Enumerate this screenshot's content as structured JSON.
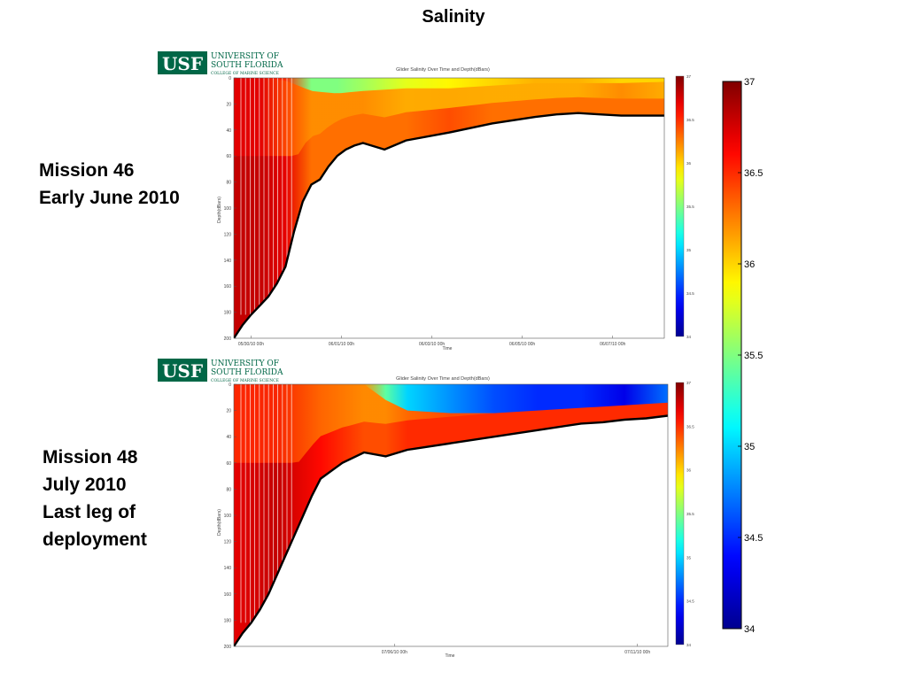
{
  "title": "Salinity",
  "logo": {
    "abbr": "USF",
    "line1": "UNIVERSITY OF",
    "line2": "SOUTH FLORIDA",
    "line3": "COLLEGE OF MARINE SCIENCE"
  },
  "missions": [
    {
      "lines": [
        "Mission 46",
        "Early June 2010"
      ]
    },
    {
      "lines": [
        "Mission 48",
        "July 2010",
        "Last leg of",
        "deployment"
      ]
    }
  ],
  "colorbar_ticks": [
    "37",
    "36.5",
    "36",
    "35.5",
    "35",
    "34.5",
    "34"
  ],
  "colors": {
    "colormap": [
      "#00008f",
      "#0000ff",
      "#00ffff",
      "#ffff00",
      "#ff0000",
      "#800000"
    ],
    "bottom_line": "#000000"
  },
  "chart_data": [
    {
      "type": "heatmap",
      "title": "Glider Salinity Over Time and Depth(dBars)",
      "xlabel": "Time",
      "ylabel": "Depth(dBars)",
      "y_ticks": [
        "0",
        "20",
        "40",
        "60",
        "80",
        "100",
        "120",
        "140",
        "160",
        "180",
        "200"
      ],
      "x_ticks": [
        "05/30/10 00h",
        "06/01/10 00h",
        "06/03/10 00h",
        "06/05/10 00h",
        "06/07/10 00h"
      ],
      "ylim": [
        0,
        200
      ],
      "clim": [
        34,
        37
      ],
      "cbar_ticks": [
        "37",
        "36.5",
        "36",
        "35.5",
        "35",
        "34.5",
        "34"
      ],
      "bottom_depth": {
        "x": [
          0.0,
          0.02,
          0.04,
          0.06,
          0.08,
          0.1,
          0.12,
          0.14,
          0.16,
          0.18,
          0.2,
          0.22,
          0.24,
          0.26,
          0.28,
          0.3,
          0.35,
          0.4,
          0.5,
          0.6,
          0.7,
          0.75,
          0.8,
          0.85,
          0.9,
          0.95,
          1.0
        ],
        "y": [
          200,
          190,
          182,
          175,
          168,
          158,
          145,
          118,
          95,
          82,
          78,
          68,
          60,
          55,
          52,
          50,
          55,
          48,
          42,
          35,
          30,
          28,
          27,
          28,
          29,
          29,
          29
        ]
      },
      "zones": {
        "x": [
          0.0,
          0.06,
          0.12,
          0.18,
          0.24,
          0.3,
          0.4,
          0.5,
          0.6,
          0.7,
          0.8,
          0.9,
          1.0
        ],
        "fresh_depth": [
          0,
          0,
          2,
          10,
          12,
          10,
          8,
          8,
          6,
          4,
          4,
          4,
          3
        ],
        "fresh_value": [
          36.6,
          36.6,
          36.5,
          35.5,
          35.5,
          35.6,
          35.8,
          35.9,
          36.0,
          36.1,
          36.1,
          36.0,
          36.0
        ],
        "surface_value": [
          36.7,
          36.7,
          36.4,
          36.2,
          36.2,
          36.2,
          36.1,
          36.1,
          36.1,
          36.1,
          36.1,
          36.2,
          36.1
        ],
        "deep_value": [
          36.8,
          36.8,
          36.7,
          36.3,
          36.3,
          36.3,
          36.3,
          36.4,
          36.3,
          36.3,
          36.3,
          36.3,
          36.3
        ]
      }
    },
    {
      "type": "heatmap",
      "title": "Glider Salinity Over Time and Depth(dBars)",
      "xlabel": "Time",
      "ylabel": "Depth(dBars)",
      "y_ticks": [
        "0",
        "20",
        "40",
        "60",
        "80",
        "100",
        "120",
        "140",
        "160",
        "180",
        "200"
      ],
      "x_ticks": [
        "07/06/10 00h",
        "07/11/10 00h"
      ],
      "ylim": [
        0,
        200
      ],
      "clim": [
        34,
        37
      ],
      "cbar_ticks": [
        "37",
        "36.5",
        "36",
        "35.5",
        "35",
        "34.5",
        "34"
      ],
      "bottom_depth": {
        "x": [
          0.0,
          0.02,
          0.04,
          0.06,
          0.08,
          0.1,
          0.12,
          0.14,
          0.16,
          0.18,
          0.2,
          0.25,
          0.3,
          0.35,
          0.4,
          0.5,
          0.6,
          0.7,
          0.8,
          0.85,
          0.9,
          0.95,
          1.0
        ],
        "y": [
          200,
          190,
          182,
          172,
          160,
          145,
          130,
          115,
          100,
          85,
          72,
          60,
          52,
          55,
          50,
          45,
          40,
          35,
          30,
          29,
          27,
          26,
          24
        ]
      },
      "zones": {
        "x": [
          0.0,
          0.1,
          0.2,
          0.3,
          0.35,
          0.4,
          0.5,
          0.6,
          0.7,
          0.8,
          0.9,
          1.0
        ],
        "fresh_depth": [
          0,
          0,
          0,
          0,
          12,
          20,
          22,
          22,
          20,
          18,
          16,
          14
        ],
        "fresh_value": [
          36.5,
          36.5,
          36.4,
          36.2,
          35.4,
          35.0,
          34.8,
          34.6,
          34.5,
          34.5,
          34.3,
          34.7
        ],
        "surface_value": [
          36.5,
          36.5,
          36.3,
          36.2,
          36.2,
          36.3,
          36.4,
          36.4,
          36.4,
          36.4,
          36.4,
          36.4
        ],
        "deep_value": [
          36.7,
          36.8,
          36.6,
          36.4,
          36.4,
          36.5,
          36.5,
          36.5,
          36.5,
          36.5,
          36.5,
          36.5
        ]
      }
    }
  ]
}
